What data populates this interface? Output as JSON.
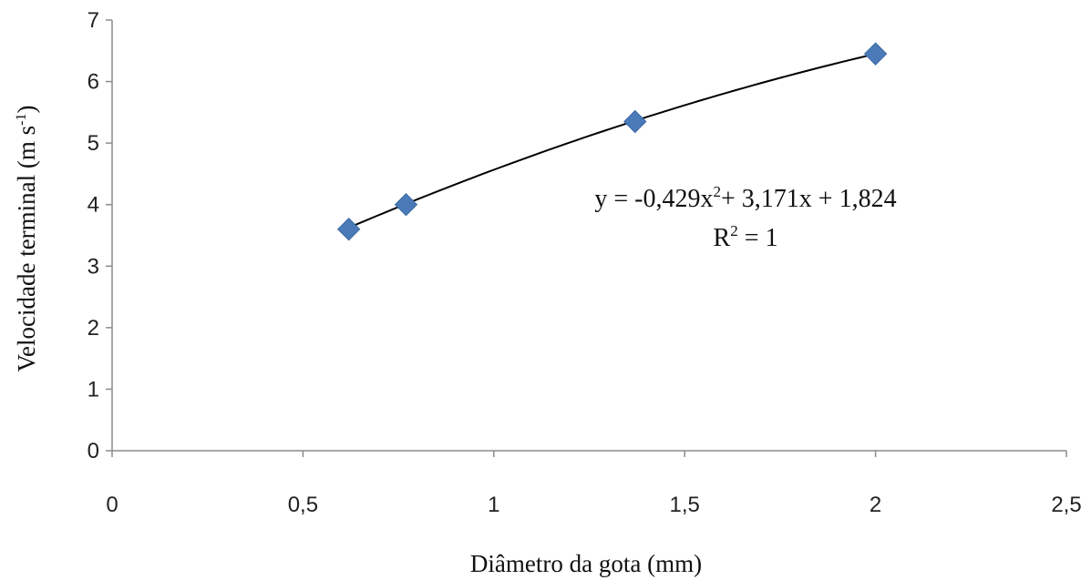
{
  "chart_data": {
    "type": "scatter",
    "x_label": "Diâmetro da gota (mm)",
    "y_label": {
      "main": "Velocidade terminal (m s",
      "superscript": "-1",
      "close": ")"
    },
    "x_ticks": [
      "0",
      "0,5",
      "1",
      "1,5",
      "2",
      "2,5"
    ],
    "y_ticks": [
      "0",
      "1",
      "2",
      "3",
      "4",
      "5",
      "6",
      "7"
    ],
    "xlim": [
      0,
      2.5
    ],
    "ylim": [
      0,
      7
    ],
    "grid": false,
    "legend": "none",
    "marker": "diamond",
    "marker_color": "#4a7ab8",
    "series": [
      {
        "x": [
          0.62,
          0.77,
          1.37,
          2.0
        ],
        "y": [
          3.6,
          4.0,
          5.35,
          6.45
        ]
      }
    ],
    "trendline": {
      "type": "polynomial",
      "coefficients": {
        "a": -0.429,
        "b": 3.171,
        "c": 1.824
      },
      "x_range": [
        0.62,
        2.0
      ],
      "color": "#000000"
    },
    "annotation": {
      "equation_parts": [
        "y = -0,429x",
        "2",
        "+ 3,171x + 1,824"
      ],
      "r2_parts": [
        "R",
        "2",
        " = 1"
      ]
    }
  }
}
